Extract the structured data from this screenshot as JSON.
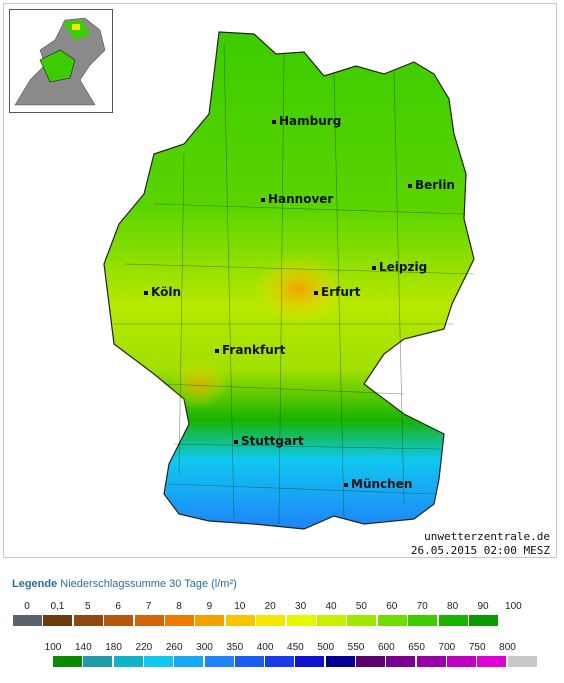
{
  "map": {
    "cities": [
      {
        "name": "Hamburg"
      },
      {
        "name": "Berlin"
      },
      {
        "name": "Hannover"
      },
      {
        "name": "Leipzig"
      },
      {
        "name": "Köln"
      },
      {
        "name": "Erfurt"
      },
      {
        "name": "Frankfurt"
      },
      {
        "name": "Stuttgart"
      },
      {
        "name": "München"
      }
    ],
    "credit_site": "unwetterzentrale.de",
    "credit_date": "26.05.2015 02:00 MESZ"
  },
  "legend": {
    "title_bold": "Legende",
    "title_text": "Niederschlagssumme 30 Tage  (l/m²)",
    "row1_labels": [
      "0",
      "0,1",
      "5",
      "6",
      "7",
      "8",
      "9",
      "10",
      "20",
      "30",
      "40",
      "50",
      "60",
      "70",
      "80",
      "90",
      "100"
    ],
    "row1_colors": [
      "#5a6270",
      "#6b3a10",
      "#8c4a10",
      "#b5560c",
      "#d0650a",
      "#ee7a00",
      "#f5a000",
      "#f8c400",
      "#f8e600",
      "#e6f800",
      "#c6f000",
      "#a0e800",
      "#70dc00",
      "#3ccc00",
      "#18b400",
      "#0a9a00"
    ],
    "row2_labels": [
      "100",
      "140",
      "180",
      "220",
      "260",
      "300",
      "350",
      "400",
      "450",
      "500",
      "550",
      "600",
      "650",
      "700",
      "750",
      "800"
    ],
    "row2_colors": [
      "#0a8a00",
      "#1e9aa8",
      "#10b4c8",
      "#10c8f0",
      "#18a8f8",
      "#1e84f8",
      "#1c5cf0",
      "#1a3ce8",
      "#1010d0",
      "#000090",
      "#5a0070",
      "#7a0090",
      "#9a00a8",
      "#c000c0",
      "#e000d8",
      "#c8c8c8"
    ]
  }
}
